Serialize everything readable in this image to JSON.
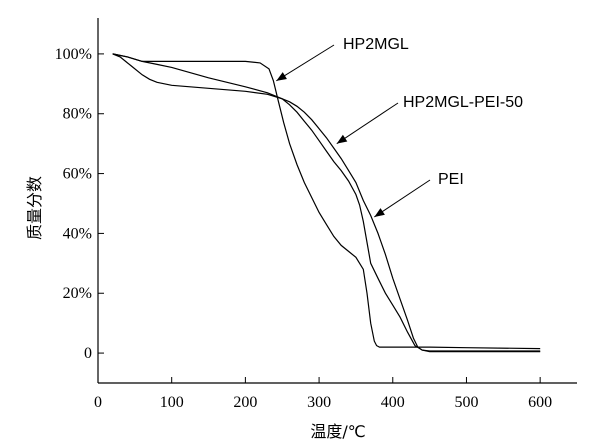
{
  "chart_data": {
    "type": "line",
    "xlabel": "温度/℃",
    "ylabel": "质量分数",
    "xlim": [
      0,
      650
    ],
    "ylim": [
      -10,
      112
    ],
    "x_ticks": [
      0,
      100,
      200,
      300,
      400,
      500,
      600
    ],
    "x_tick_labels": [
      "0",
      "100",
      "200",
      "300",
      "400",
      "500",
      "600"
    ],
    "y_ticks": [
      0,
      20,
      40,
      60,
      80,
      100
    ],
    "y_tick_labels": [
      "0",
      "20%",
      "40%",
      "60%",
      "80%",
      "100%"
    ],
    "series": [
      {
        "name": "HP2MGL",
        "x": [
          20,
          40,
          60,
          100,
          150,
          200,
          220,
          232,
          238,
          245,
          252,
          260,
          270,
          280,
          290,
          300,
          310,
          320,
          330,
          340,
          350,
          360,
          365,
          370,
          375,
          378,
          382,
          390,
          400,
          450,
          500,
          600
        ],
        "y": [
          100,
          99,
          97.5,
          97.5,
          97.5,
          97.5,
          97,
          95,
          91,
          84,
          77,
          70,
          63,
          57,
          52,
          47,
          43,
          39,
          36,
          34,
          32,
          28,
          20,
          10,
          4,
          2.5,
          2,
          2,
          2,
          2,
          1.8,
          1.5
        ]
      },
      {
        "name": "HP2MGL-PEI-50",
        "x": [
          20,
          40,
          60,
          80,
          100,
          150,
          200,
          230,
          250,
          260,
          270,
          280,
          290,
          300,
          310,
          320,
          330,
          340,
          350,
          355,
          360,
          365,
          370,
          380,
          390,
          400,
          410,
          420,
          430,
          440,
          450,
          500,
          600
        ],
        "y": [
          100,
          99,
          97.5,
          96.5,
          95.5,
          92,
          89,
          87,
          85,
          83,
          80.5,
          77.5,
          74.5,
          71,
          67.5,
          64,
          61,
          57.5,
          53,
          49.5,
          44,
          37,
          30,
          25,
          20,
          16,
          12,
          7,
          2.5,
          1,
          0.7,
          0.7,
          0.7
        ]
      },
      {
        "name": "PEI",
        "x": [
          20,
          30,
          45,
          60,
          70,
          80,
          100,
          150,
          200,
          230,
          250,
          260,
          270,
          280,
          290,
          300,
          310,
          320,
          330,
          340,
          350,
          360,
          370,
          380,
          390,
          400,
          410,
          420,
          428,
          434,
          440,
          450,
          600
        ],
        "y": [
          100,
          99,
          96,
          93,
          91.5,
          90.5,
          89.5,
          88.5,
          87.5,
          86.5,
          85,
          84,
          82.5,
          80.5,
          78,
          75,
          72,
          68.5,
          65,
          61,
          57,
          51,
          46,
          40,
          33,
          25,
          18,
          11,
          5,
          2,
          1,
          0.5,
          0.5
        ]
      }
    ],
    "annotations": [
      {
        "text": "HP2MGL",
        "x": 242,
        "y": 91
      },
      {
        "text": "HP2MGL-PEI-50",
        "x": 324,
        "y": 70
      },
      {
        "text": "PEI",
        "x": 375,
        "y": 45.5
      }
    ]
  }
}
